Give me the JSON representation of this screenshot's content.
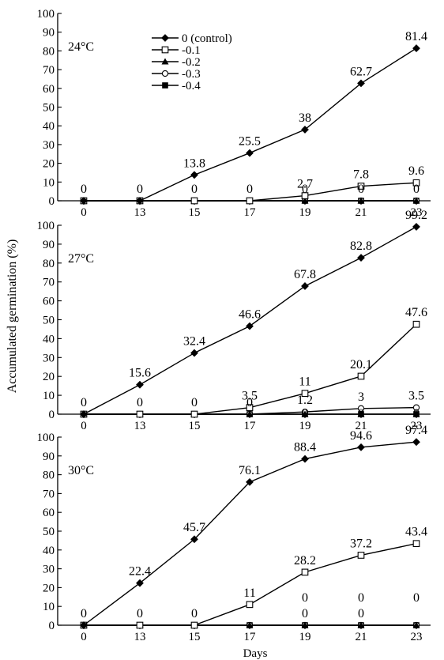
{
  "figure": {
    "ylabel": "Accumulated germination (%)",
    "xlabel": "Days",
    "legend": {
      "placement": "top-center (first panel)",
      "entries": [
        {
          "label": "0 (control)",
          "marker": "filled-diamond"
        },
        {
          "label": "-0.1",
          "marker": "open-square"
        },
        {
          "label": "-0.2",
          "marker": "filled-triangle"
        },
        {
          "label": "-0.3",
          "marker": "open-circle"
        },
        {
          "label": "-0.4",
          "marker": "filled-square"
        }
      ]
    }
  },
  "chart_data": [
    {
      "type": "line",
      "title": "24°C",
      "categories": [
        "0",
        "13",
        "15",
        "17",
        "19",
        "21",
        "23"
      ],
      "ylim": [
        0,
        100
      ],
      "yticks": [
        0,
        10,
        20,
        30,
        40,
        50,
        60,
        70,
        80,
        90,
        100
      ],
      "grid": false,
      "series": [
        {
          "name": "0 (control)",
          "marker": "filled-diamond",
          "values": [
            0,
            0,
            13.8,
            25.5,
            38,
            62.7,
            81.4
          ],
          "data_labels": [
            "0",
            "0",
            "13.8",
            "25.5",
            "38",
            "62.7",
            "81.4"
          ]
        },
        {
          "name": "-0.1",
          "marker": "open-square",
          "values": [
            0,
            0,
            0,
            0,
            2.7,
            7.8,
            9.6
          ],
          "data_labels": [
            "",
            "",
            "0",
            "0",
            "2.7",
            "7.8",
            "9.6"
          ]
        },
        {
          "name": "-0.2",
          "marker": "filled-triangle",
          "values": [
            0,
            0,
            0,
            0,
            0,
            0,
            0
          ],
          "data_labels": []
        },
        {
          "name": "-0.3",
          "marker": "open-circle",
          "values": [
            0,
            0,
            0,
            0,
            0,
            0,
            0
          ],
          "data_labels": [
            "",
            "",
            "",
            "",
            "0",
            "0",
            "0"
          ]
        },
        {
          "name": "-0.4",
          "marker": "filled-square",
          "values": [
            0,
            0,
            0,
            0,
            0,
            0,
            0
          ],
          "data_labels": []
        }
      ]
    },
    {
      "type": "line",
      "title": "27°C",
      "categories": [
        "0",
        "13",
        "15",
        "17",
        "19",
        "21",
        "23"
      ],
      "ylim": [
        0,
        100
      ],
      "yticks": [
        0,
        10,
        20,
        30,
        40,
        50,
        60,
        70,
        80,
        90,
        100
      ],
      "grid": false,
      "series": [
        {
          "name": "0 (control)",
          "marker": "filled-diamond",
          "values": [
            0,
            15.6,
            32.4,
            46.6,
            67.8,
            82.8,
            99.2
          ],
          "data_labels": [
            "0",
            "15.6",
            "32.4",
            "46.6",
            "67.8",
            "82.8",
            "99.2"
          ]
        },
        {
          "name": "-0.1",
          "marker": "open-square",
          "values": [
            0,
            0,
            0,
            3.5,
            11,
            20.1,
            47.6
          ],
          "data_labels": [
            "",
            "0",
            "0",
            "3.5",
            "11",
            "20.1",
            "47.6"
          ]
        },
        {
          "name": "-0.2",
          "marker": "filled-triangle",
          "values": [
            0,
            0,
            0,
            0,
            0,
            0,
            0
          ],
          "data_labels": [
            "",
            "",
            "",
            "0",
            "",
            "",
            ""
          ]
        },
        {
          "name": "-0.3",
          "marker": "open-circle",
          "values": [
            0,
            0,
            0,
            0,
            1.2,
            3,
            3.5
          ],
          "data_labels": [
            "",
            "",
            "",
            "",
            "1.2",
            "3",
            "3.5"
          ]
        },
        {
          "name": "-0.4",
          "marker": "filled-square",
          "values": [
            0,
            0,
            0,
            0,
            0,
            0,
            0
          ],
          "data_labels": [
            "",
            "",
            "",
            "",
            "0",
            "0",
            "0"
          ]
        }
      ]
    },
    {
      "type": "line",
      "title": "30°C",
      "categories": [
        "0",
        "13",
        "15",
        "17",
        "19",
        "21",
        "23"
      ],
      "ylim": [
        0,
        100
      ],
      "yticks": [
        0,
        10,
        20,
        30,
        40,
        50,
        60,
        70,
        80,
        90,
        100
      ],
      "grid": false,
      "series": [
        {
          "name": "0 (control)",
          "marker": "filled-diamond",
          "values": [
            0,
            22.4,
            45.7,
            76.1,
            88.4,
            94.6,
            97.4
          ],
          "data_labels": [
            "0",
            "22.4",
            "45.7",
            "76.1",
            "88.4",
            "94.6",
            "97.4"
          ]
        },
        {
          "name": "-0.1",
          "marker": "open-square",
          "values": [
            0,
            0,
            0,
            11,
            28.2,
            37.2,
            43.4
          ],
          "data_labels": [
            "",
            "0",
            "0",
            "11",
            "28.2",
            "37.2",
            "43.4"
          ]
        },
        {
          "name": "-0.2",
          "marker": "filled-triangle",
          "values": [
            0,
            0,
            0,
            0,
            0,
            0,
            0
          ],
          "data_labels": []
        },
        {
          "name": "-0.3",
          "marker": "open-circle",
          "values": [
            0,
            0,
            0,
            0,
            0,
            0,
            0
          ],
          "data_labels": [
            "",
            "",
            "",
            "",
            "0",
            "0",
            "0"
          ]
        },
        {
          "name": "-0.4",
          "marker": "filled-square",
          "values": [
            0,
            0,
            0,
            0,
            0,
            0,
            0
          ],
          "data_labels": [
            "",
            "",
            "",
            "",
            "0",
            "0",
            ""
          ]
        }
      ]
    }
  ]
}
